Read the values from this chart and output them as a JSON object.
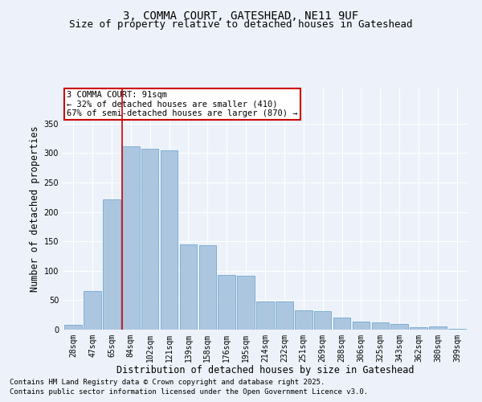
{
  "title_line1": "3, COMMA COURT, GATESHEAD, NE11 9UF",
  "title_line2": "Size of property relative to detached houses in Gateshead",
  "xlabel": "Distribution of detached houses by size in Gateshead",
  "ylabel": "Number of detached properties",
  "categories": [
    "28sqm",
    "47sqm",
    "65sqm",
    "84sqm",
    "102sqm",
    "121sqm",
    "139sqm",
    "158sqm",
    "176sqm",
    "195sqm",
    "214sqm",
    "232sqm",
    "251sqm",
    "269sqm",
    "288sqm",
    "306sqm",
    "325sqm",
    "343sqm",
    "362sqm",
    "380sqm",
    "399sqm"
  ],
  "values": [
    8,
    65,
    222,
    312,
    308,
    305,
    145,
    143,
    93,
    92,
    48,
    48,
    33,
    32,
    20,
    14,
    12,
    10,
    4,
    5,
    2
  ],
  "bar_color": "#adc6e0",
  "bar_edge_color": "#6fa8d0",
  "red_line_x": 2.55,
  "annotation_text": "3 COMMA COURT: 91sqm\n← 32% of detached houses are smaller (410)\n67% of semi-detached houses are larger (870) →",
  "annotation_box_color": "white",
  "annotation_box_edge_color": "#cc0000",
  "red_line_color": "#cc0000",
  "ylim": [
    0,
    410
  ],
  "yticks": [
    0,
    50,
    100,
    150,
    200,
    250,
    300,
    350
  ],
  "footer_line1": "Contains HM Land Registry data © Crown copyright and database right 2025.",
  "footer_line2": "Contains public sector information licensed under the Open Government Licence v3.0.",
  "bg_color": "#edf2fa",
  "grid_color": "#ffffff",
  "title_fontsize": 10,
  "subtitle_fontsize": 9,
  "tick_fontsize": 7,
  "axis_label_fontsize": 8.5,
  "footer_fontsize": 6.5,
  "annotation_fontsize": 7.5
}
